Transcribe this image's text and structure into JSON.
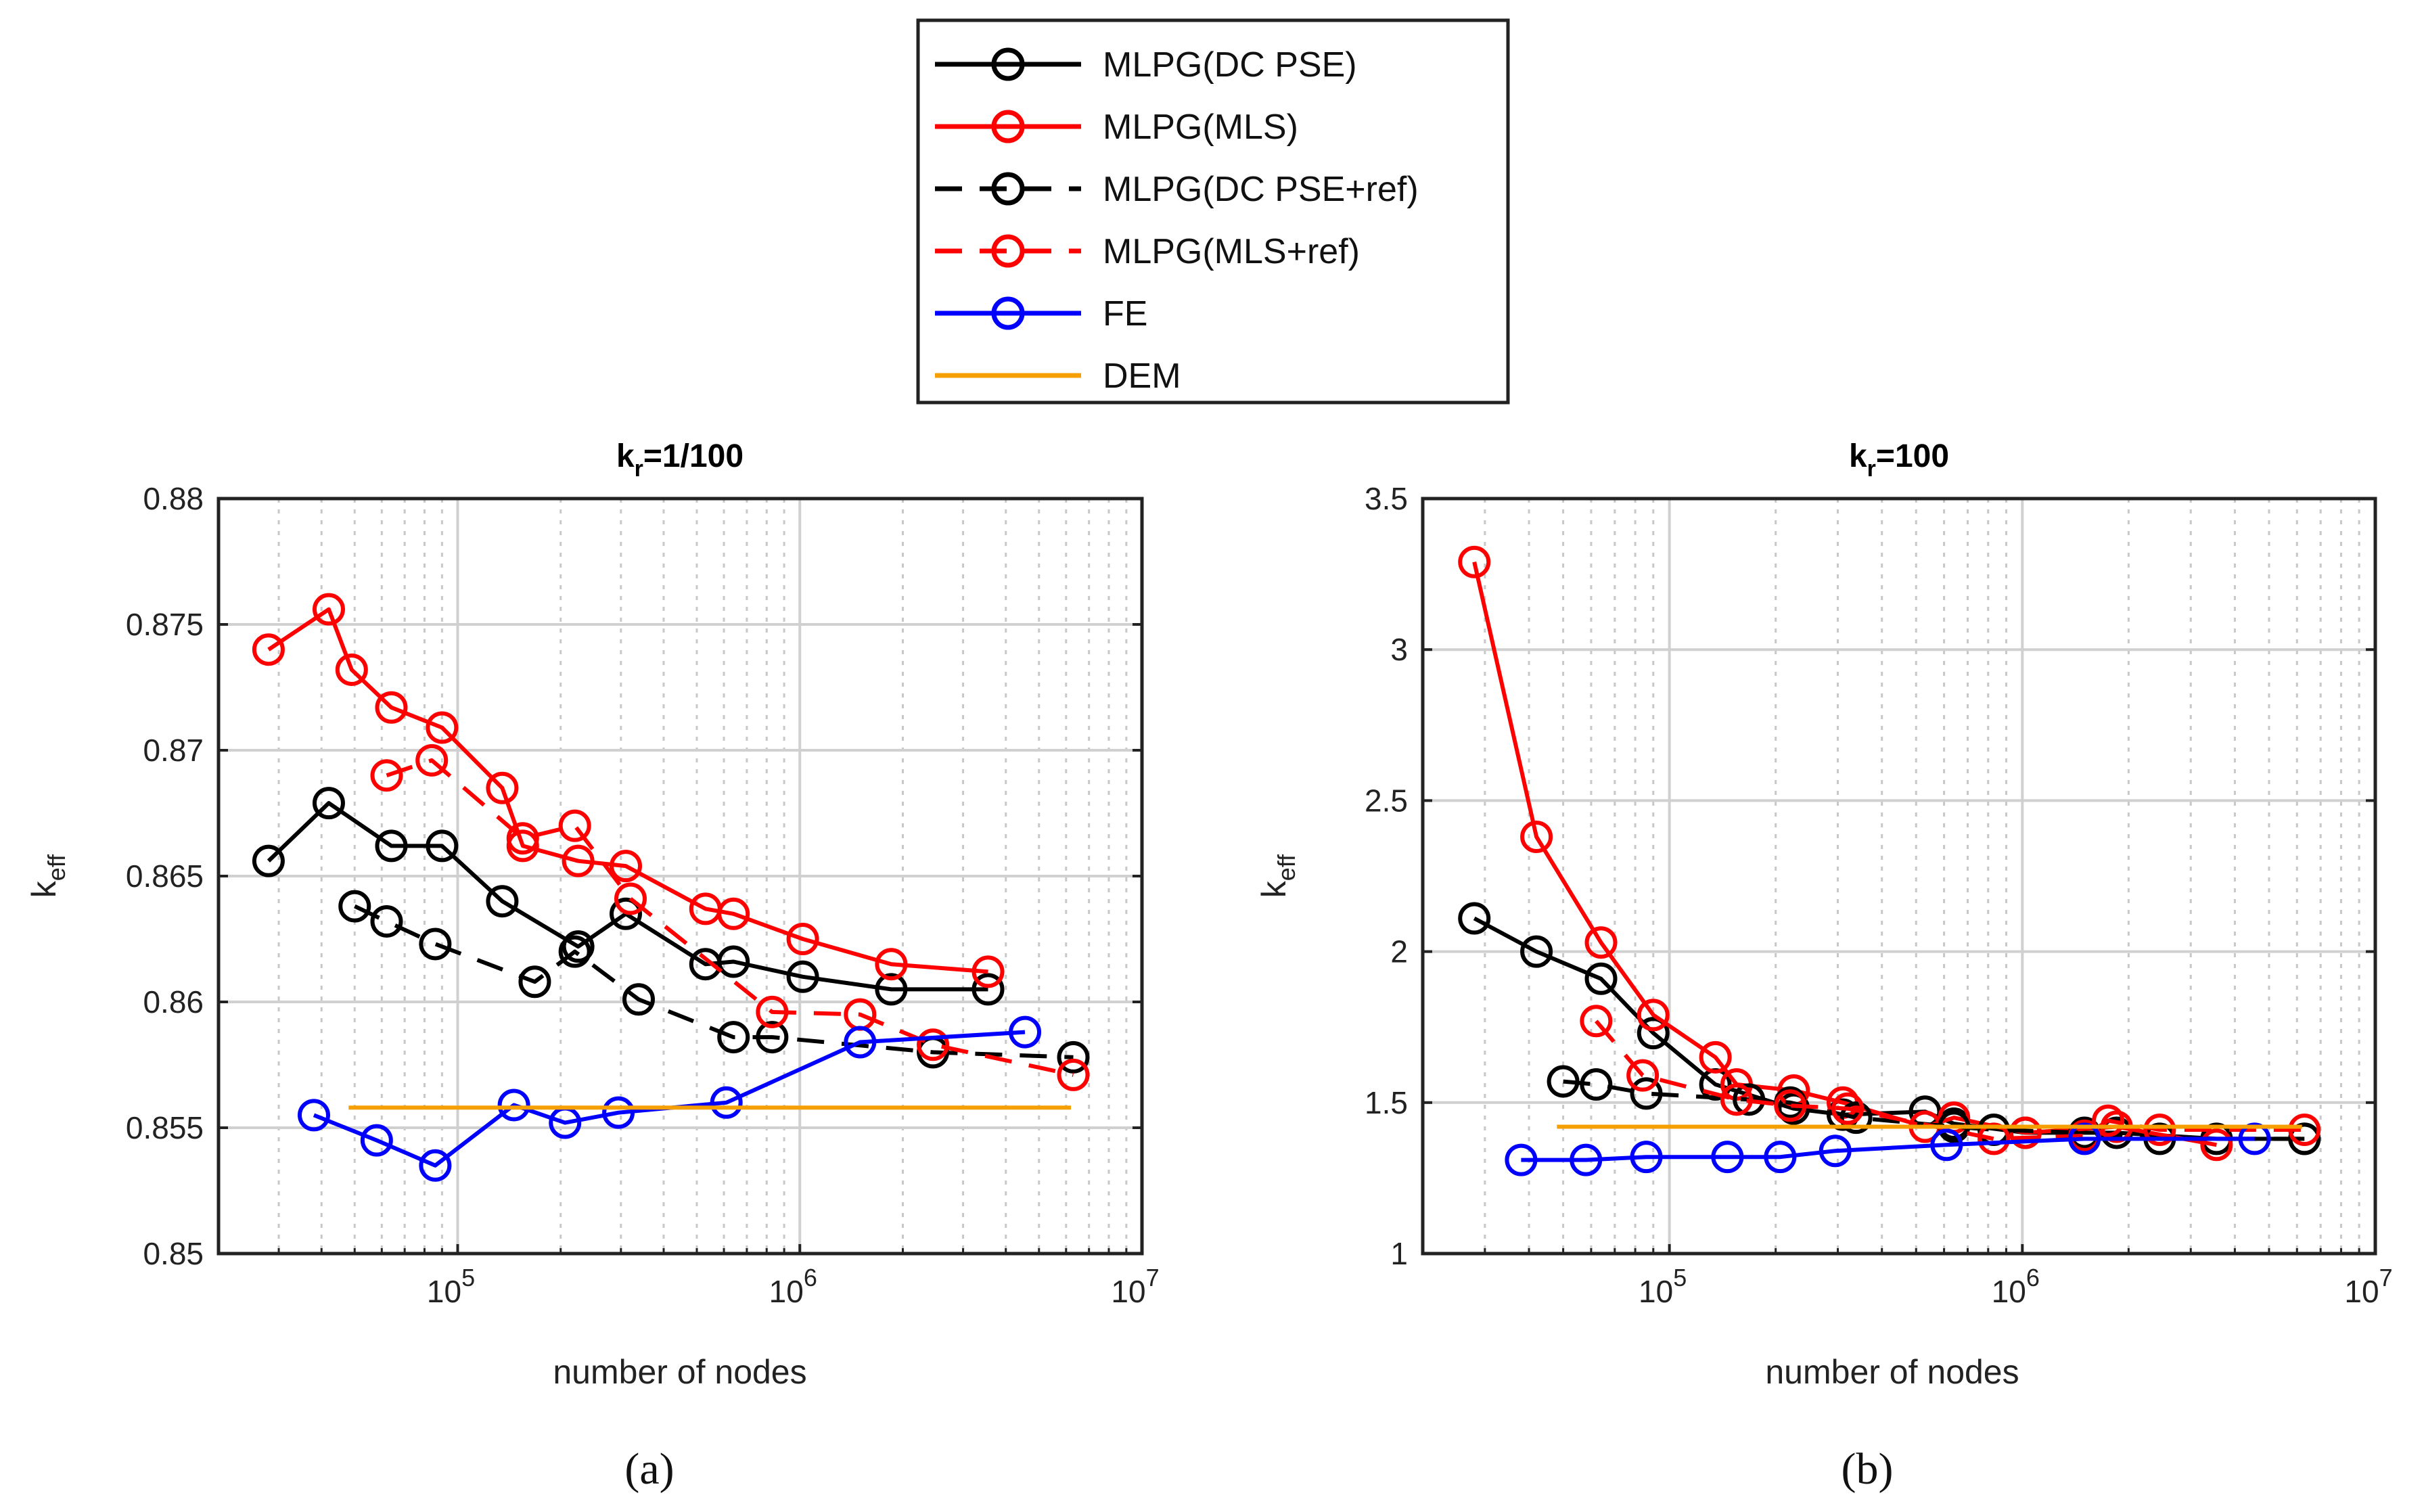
{
  "legend": [
    {
      "label": "MLPG(DC PSE)",
      "color": "#000000",
      "dash": false,
      "marker": true
    },
    {
      "label": "MLPG(MLS)",
      "color": "#ff0000",
      "dash": false,
      "marker": true
    },
    {
      "label": "MLPG(DC PSE+ref)",
      "color": "#000000",
      "dash": true,
      "marker": true
    },
    {
      "label": "MLPG(MLS+ref)",
      "color": "#ff0000",
      "dash": true,
      "marker": true
    },
    {
      "label": "FE",
      "color": "#0000ff",
      "dash": false,
      "marker": true
    },
    {
      "label": "DEM",
      "color": "#f5a000",
      "dash": false,
      "marker": false
    }
  ],
  "chart_data": [
    {
      "type": "line",
      "title_base": "k",
      "title_sub": "r",
      "title_rest": "=1/100",
      "xlabel": "number of nodes",
      "ylabel_base": "k",
      "ylabel_sub": "eff",
      "xscale": "log",
      "xlim": [
        20000,
        10000000
      ],
      "ylim": [
        0.85,
        0.88
      ],
      "yticks": [
        "0.85",
        "0.855",
        "0.86",
        "0.865",
        "0.87",
        "0.875",
        "0.88"
      ],
      "xticks": [
        {
          "base": "10",
          "exp": "5",
          "value": 100000
        },
        {
          "base": "10",
          "exp": "6",
          "value": 1000000
        },
        {
          "base": "10",
          "exp": "7",
          "value": 10000000
        }
      ],
      "grid": true,
      "caption": "(a)",
      "series": [
        {
          "name": "MLPG(DC PSE)",
          "x": [
            28000,
            42000,
            64000,
            90000,
            135000,
            225000,
            310000,
            530000,
            640000,
            1020000,
            1850000,
            3550000
          ],
          "y": [
            0.8656,
            0.8679,
            0.8662,
            0.8662,
            0.864,
            0.8622,
            0.8635,
            0.8615,
            0.8616,
            0.861,
            0.8605,
            0.8605
          ]
        },
        {
          "name": "MLPG(MLS)",
          "x": [
            28000,
            42000,
            49000,
            64000,
            90000,
            135000,
            155000,
            225000,
            310000,
            530000,
            640000,
            1020000,
            1850000,
            3550000
          ],
          "y": [
            0.874,
            0.8756,
            0.8732,
            0.8717,
            0.8709,
            0.8685,
            0.8662,
            0.8656,
            0.8654,
            0.8637,
            0.8635,
            0.8625,
            0.8615,
            0.8612
          ]
        },
        {
          "name": "MLPG(DC PSE+ref)",
          "x": [
            50000,
            62000,
            86000,
            168000,
            220000,
            338000,
            640000,
            830000,
            2450000,
            6300000
          ],
          "y": [
            0.8638,
            0.8632,
            0.8623,
            0.8608,
            0.862,
            0.8601,
            0.8586,
            0.8586,
            0.858,
            0.8578
          ]
        },
        {
          "name": "MLPG(MLS+ref)",
          "x": [
            62000,
            84000,
            155000,
            220000,
            320000,
            830000,
            1500000,
            2450000,
            6300000
          ],
          "y": [
            0.869,
            0.8696,
            0.8665,
            0.867,
            0.8641,
            0.8596,
            0.8595,
            0.8583,
            0.8571
          ]
        },
        {
          "name": "FE",
          "x": [
            38000,
            58000,
            86000,
            146000,
            206000,
            295000,
            610000,
            1500000,
            4550000
          ],
          "y": [
            0.8555,
            0.8545,
            0.8535,
            0.8559,
            0.8552,
            0.8556,
            0.856,
            0.8584,
            0.8588
          ]
        },
        {
          "name": "DEM",
          "x": [
            48000,
            6200000
          ],
          "y": [
            0.8558,
            0.8558
          ]
        }
      ]
    },
    {
      "type": "line",
      "title_base": "k",
      "title_sub": "r",
      "title_rest": "=100",
      "xlabel": "number of nodes",
      "ylabel_base": "k",
      "ylabel_sub": "eff",
      "xscale": "log",
      "xlim": [
        20000,
        10000000
      ],
      "ylim": [
        1,
        3.5
      ],
      "yticks": [
        "1",
        "1.5",
        "2",
        "2.5",
        "3",
        "3.5"
      ],
      "xticks": [
        {
          "base": "10",
          "exp": "5",
          "value": 100000
        },
        {
          "base": "10",
          "exp": "6",
          "value": 1000000
        },
        {
          "base": "10",
          "exp": "7",
          "value": 10000000
        }
      ],
      "grid": true,
      "caption": "(b)",
      "series": [
        {
          "name": "MLPG(DC PSE)",
          "x": [
            28000,
            42000,
            64000,
            90000,
            135000,
            225000,
            310000,
            530000,
            640000,
            1020000,
            1850000,
            3550000,
            6300000
          ],
          "y": [
            2.11,
            2.0,
            1.91,
            1.73,
            1.56,
            1.48,
            1.46,
            1.47,
            1.43,
            1.4,
            1.4,
            1.38,
            1.38
          ]
        },
        {
          "name": "MLPG(MLS)",
          "x": [
            28000,
            42000,
            64000,
            90000,
            135000,
            155000,
            225000,
            310000,
            530000,
            640000,
            1020000,
            1850000,
            3550000
          ],
          "y": [
            3.29,
            2.38,
            2.03,
            1.79,
            1.65,
            1.56,
            1.54,
            1.5,
            1.42,
            1.45,
            1.4,
            1.42,
            1.36
          ]
        },
        {
          "name": "MLPG(DC PSE+ref)",
          "x": [
            50000,
            62000,
            86000,
            168000,
            220000,
            338000,
            640000,
            830000,
            1500000,
            2450000,
            6300000
          ],
          "y": [
            1.57,
            1.56,
            1.53,
            1.51,
            1.5,
            1.45,
            1.42,
            1.41,
            1.4,
            1.38,
            1.38
          ]
        },
        {
          "name": "MLPG(MLS+ref)",
          "x": [
            62000,
            84000,
            155000,
            220000,
            320000,
            830000,
            1500000,
            1750000,
            2450000,
            6300000
          ],
          "y": [
            1.77,
            1.59,
            1.51,
            1.49,
            1.48,
            1.38,
            1.39,
            1.44,
            1.41,
            1.41
          ]
        },
        {
          "name": "FE",
          "x": [
            38000,
            58000,
            86000,
            146000,
            206000,
            295000,
            610000,
            1500000,
            4550000
          ],
          "y": [
            1.31,
            1.31,
            1.32,
            1.32,
            1.32,
            1.34,
            1.36,
            1.38,
            1.38
          ]
        },
        {
          "name": "DEM",
          "x": [
            48000,
            6200000
          ],
          "y": [
            1.42,
            1.42
          ]
        }
      ]
    }
  ]
}
